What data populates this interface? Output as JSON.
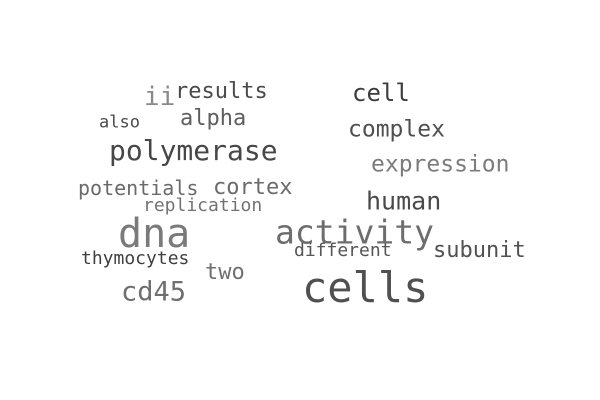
{
  "cloud": {
    "background": "#ffffff",
    "words": {
      "cells": {
        "text": "cells",
        "color": "#505050"
      },
      "dna": {
        "text": "dna",
        "color": "#7a7a7a"
      },
      "activity": {
        "text": "activity",
        "color": "#6d6d6d"
      },
      "polymerase": {
        "text": "polymerase",
        "color": "#474747"
      },
      "cd45": {
        "text": "cd45",
        "color": "#6f6f6f"
      },
      "human": {
        "text": "human",
        "color": "#4a4a4a"
      },
      "cell": {
        "text": "cell",
        "color": "#3d3d3d"
      },
      "complex": {
        "text": "complex",
        "color": "#4f4f4f"
      },
      "expression": {
        "text": "expression",
        "color": "#7c7c7c"
      },
      "subunit": {
        "text": "subunit",
        "color": "#505050"
      },
      "cortex": {
        "text": "cortex",
        "color": "#6b6b6b"
      },
      "alpha": {
        "text": "alpha",
        "color": "#5e5e5e"
      },
      "results": {
        "text": "results",
        "color": "#4a4a4a"
      },
      "two": {
        "text": "two",
        "color": "#707070"
      },
      "ii": {
        "text": "ii",
        "color": "#8a8a8a"
      },
      "potentials": {
        "text": "potentials",
        "color": "#6a6a6a"
      },
      "replication": {
        "text": "replication",
        "color": "#737373"
      },
      "different": {
        "text": "different",
        "color": "#555555"
      },
      "thymocytes": {
        "text": "thymocytes",
        "color": "#3f3f3f"
      },
      "also": {
        "text": "also",
        "color": "#4b4b4b"
      }
    }
  }
}
